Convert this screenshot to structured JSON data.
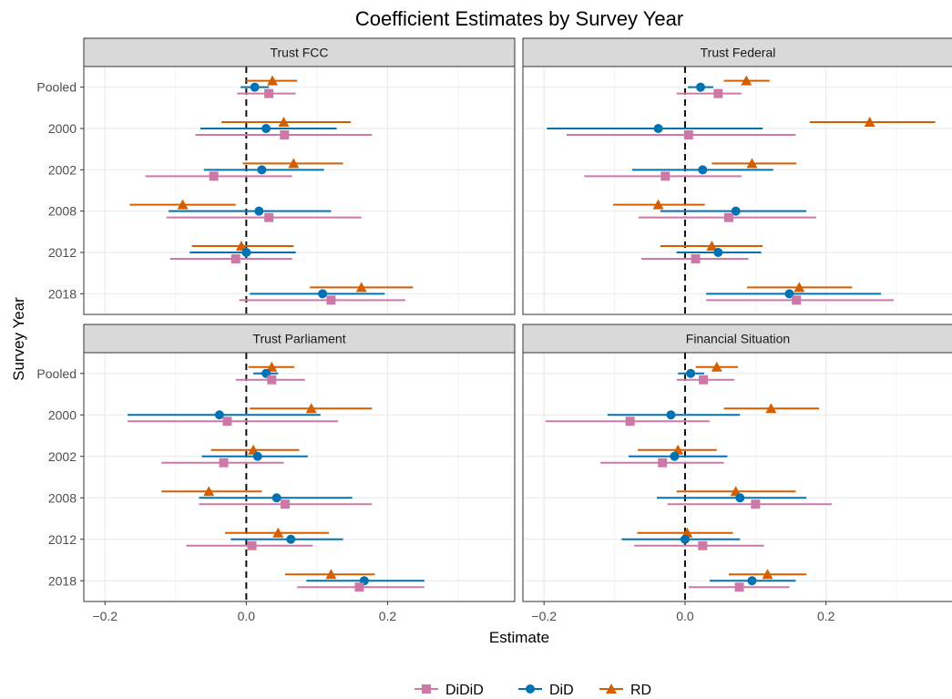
{
  "colors": {
    "DiDiD": "#cc79a7",
    "DiD": "#0072b2",
    "RD": "#d55e00",
    "strip": "#d9d9d9",
    "grid": "#ebebeb",
    "border": "#333333"
  },
  "chart_data": {
    "type": "forest-plot",
    "title": "Coefficient Estimates by Survey Year",
    "xlabel": "Estimate",
    "ylabel": "Survey Year",
    "xlim": [
      -0.23,
      0.38
    ],
    "x_ticks": [
      -0.2,
      0.0,
      0.2
    ],
    "x_tick_labels": [
      "−0.2",
      "0.0",
      "0.2"
    ],
    "reference_line": 0,
    "categories": [
      "Pooled",
      "2000",
      "2002",
      "2008",
      "2012",
      "2018"
    ],
    "legend": {
      "placement": "bottom",
      "entries": [
        {
          "name": "DiDiD",
          "marker": "square"
        },
        {
          "name": "DiD",
          "marker": "circle"
        },
        {
          "name": "RD",
          "marker": "triangle"
        }
      ]
    },
    "panels": [
      {
        "title": "Trust FCC",
        "series": [
          {
            "name": "RD",
            "points": [
              {
                "year": "Pooled",
                "est": 0.037,
                "lo": 0.0,
                "hi": 0.072
              },
              {
                "year": "2000",
                "est": 0.053,
                "lo": -0.035,
                "hi": 0.148
              },
              {
                "year": "2002",
                "est": 0.067,
                "lo": -0.005,
                "hi": 0.137
              },
              {
                "year": "2008",
                "est": -0.09,
                "lo": -0.165,
                "hi": -0.015
              },
              {
                "year": "2012",
                "est": -0.007,
                "lo": -0.077,
                "hi": 0.067
              },
              {
                "year": "2018",
                "est": 0.163,
                "lo": 0.09,
                "hi": 0.236
              }
            ]
          },
          {
            "name": "DiD",
            "points": [
              {
                "year": "Pooled",
                "est": 0.012,
                "lo": -0.008,
                "hi": 0.032
              },
              {
                "year": "2000",
                "est": 0.028,
                "lo": -0.065,
                "hi": 0.128
              },
              {
                "year": "2002",
                "est": 0.022,
                "lo": -0.06,
                "hi": 0.11
              },
              {
                "year": "2008",
                "est": 0.018,
                "lo": -0.11,
                "hi": 0.12
              },
              {
                "year": "2012",
                "est": 0.0,
                "lo": -0.08,
                "hi": 0.07
              },
              {
                "year": "2018",
                "est": 0.108,
                "lo": 0.005,
                "hi": 0.196
              }
            ]
          },
          {
            "name": "DiDiD",
            "points": [
              {
                "year": "Pooled",
                "est": 0.032,
                "lo": -0.013,
                "hi": 0.07
              },
              {
                "year": "2000",
                "est": 0.054,
                "lo": -0.072,
                "hi": 0.178
              },
              {
                "year": "2002",
                "est": -0.046,
                "lo": -0.143,
                "hi": 0.065
              },
              {
                "year": "2008",
                "est": 0.032,
                "lo": -0.113,
                "hi": 0.163
              },
              {
                "year": "2012",
                "est": -0.015,
                "lo": -0.108,
                "hi": 0.065
              },
              {
                "year": "2018",
                "est": 0.12,
                "lo": -0.01,
                "hi": 0.225
              }
            ]
          }
        ]
      },
      {
        "title": "Trust Federal",
        "series": [
          {
            "name": "RD",
            "points": [
              {
                "year": "Pooled",
                "est": 0.087,
                "lo": 0.055,
                "hi": 0.12
              },
              {
                "year": "2000",
                "est": 0.262,
                "lo": 0.177,
                "hi": 0.355
              },
              {
                "year": "2002",
                "est": 0.095,
                "lo": 0.038,
                "hi": 0.158
              },
              {
                "year": "2008",
                "est": -0.038,
                "lo": -0.102,
                "hi": 0.028
              },
              {
                "year": "2012",
                "est": 0.038,
                "lo": -0.035,
                "hi": 0.11
              },
              {
                "year": "2018",
                "est": 0.162,
                "lo": 0.088,
                "hi": 0.237
              }
            ]
          },
          {
            "name": "DiD",
            "points": [
              {
                "year": "Pooled",
                "est": 0.022,
                "lo": 0.004,
                "hi": 0.04
              },
              {
                "year": "2000",
                "est": -0.038,
                "lo": -0.196,
                "hi": 0.11
              },
              {
                "year": "2002",
                "est": 0.025,
                "lo": -0.075,
                "hi": 0.125
              },
              {
                "year": "2008",
                "est": 0.072,
                "lo": -0.035,
                "hi": 0.172
              },
              {
                "year": "2012",
                "est": 0.047,
                "lo": -0.012,
                "hi": 0.108
              },
              {
                "year": "2018",
                "est": 0.148,
                "lo": 0.03,
                "hi": 0.278
              }
            ]
          },
          {
            "name": "DiDiD",
            "points": [
              {
                "year": "Pooled",
                "est": 0.047,
                "lo": -0.012,
                "hi": 0.08
              },
              {
                "year": "2000",
                "est": 0.005,
                "lo": -0.168,
                "hi": 0.157
              },
              {
                "year": "2002",
                "est": -0.028,
                "lo": -0.143,
                "hi": 0.08
              },
              {
                "year": "2008",
                "est": 0.062,
                "lo": -0.066,
                "hi": 0.186
              },
              {
                "year": "2012",
                "est": 0.015,
                "lo": -0.062,
                "hi": 0.09
              },
              {
                "year": "2018",
                "est": 0.158,
                "lo": 0.03,
                "hi": 0.296
              }
            ]
          }
        ]
      },
      {
        "title": "Trust Parliament",
        "series": [
          {
            "name": "RD",
            "points": [
              {
                "year": "Pooled",
                "est": 0.036,
                "lo": 0.003,
                "hi": 0.068
              },
              {
                "year": "2000",
                "est": 0.092,
                "lo": 0.005,
                "hi": 0.178
              },
              {
                "year": "2002",
                "est": 0.01,
                "lo": -0.05,
                "hi": 0.075
              },
              {
                "year": "2008",
                "est": -0.053,
                "lo": -0.12,
                "hi": 0.022
              },
              {
                "year": "2012",
                "est": 0.045,
                "lo": -0.03,
                "hi": 0.117
              },
              {
                "year": "2018",
                "est": 0.12,
                "lo": 0.055,
                "hi": 0.182
              }
            ]
          },
          {
            "name": "DiD",
            "points": [
              {
                "year": "Pooled",
                "est": 0.028,
                "lo": 0.01,
                "hi": 0.045
              },
              {
                "year": "2000",
                "est": -0.038,
                "lo": -0.168,
                "hi": 0.105
              },
              {
                "year": "2002",
                "est": 0.016,
                "lo": -0.063,
                "hi": 0.087
              },
              {
                "year": "2008",
                "est": 0.043,
                "lo": -0.067,
                "hi": 0.15
              },
              {
                "year": "2012",
                "est": 0.063,
                "lo": -0.022,
                "hi": 0.137
              },
              {
                "year": "2018",
                "est": 0.167,
                "lo": 0.085,
                "hi": 0.252
              }
            ]
          },
          {
            "name": "DiDiD",
            "points": [
              {
                "year": "Pooled",
                "est": 0.036,
                "lo": -0.015,
                "hi": 0.083
              },
              {
                "year": "2000",
                "est": -0.027,
                "lo": -0.168,
                "hi": 0.13
              },
              {
                "year": "2002",
                "est": -0.032,
                "lo": -0.12,
                "hi": 0.053
              },
              {
                "year": "2008",
                "est": 0.055,
                "lo": -0.067,
                "hi": 0.178
              },
              {
                "year": "2012",
                "est": 0.008,
                "lo": -0.085,
                "hi": 0.094
              },
              {
                "year": "2018",
                "est": 0.16,
                "lo": 0.072,
                "hi": 0.252
              }
            ]
          }
        ]
      },
      {
        "title": "Financial Situation",
        "series": [
          {
            "name": "RD",
            "points": [
              {
                "year": "Pooled",
                "est": 0.045,
                "lo": 0.015,
                "hi": 0.075
              },
              {
                "year": "2000",
                "est": 0.122,
                "lo": 0.055,
                "hi": 0.19
              },
              {
                "year": "2002",
                "est": -0.01,
                "lo": -0.067,
                "hi": 0.045
              },
              {
                "year": "2008",
                "est": 0.072,
                "lo": -0.012,
                "hi": 0.157
              },
              {
                "year": "2012",
                "est": 0.003,
                "lo": -0.068,
                "hi": 0.068
              },
              {
                "year": "2018",
                "est": 0.117,
                "lo": 0.062,
                "hi": 0.172
              }
            ]
          },
          {
            "name": "DiD",
            "points": [
              {
                "year": "Pooled",
                "est": 0.008,
                "lo": -0.01,
                "hi": 0.027
              },
              {
                "year": "2000",
                "est": -0.02,
                "lo": -0.11,
                "hi": 0.078
              },
              {
                "year": "2002",
                "est": -0.015,
                "lo": -0.08,
                "hi": 0.06
              },
              {
                "year": "2008",
                "est": 0.078,
                "lo": -0.04,
                "hi": 0.172
              },
              {
                "year": "2012",
                "est": 0.0,
                "lo": -0.09,
                "hi": 0.078
              },
              {
                "year": "2018",
                "est": 0.095,
                "lo": 0.035,
                "hi": 0.157
              }
            ]
          },
          {
            "name": "DiDiD",
            "points": [
              {
                "year": "Pooled",
                "est": 0.026,
                "lo": -0.012,
                "hi": 0.07
              },
              {
                "year": "2000",
                "est": -0.078,
                "lo": -0.198,
                "hi": 0.035
              },
              {
                "year": "2002",
                "est": -0.032,
                "lo": -0.12,
                "hi": 0.055
              },
              {
                "year": "2008",
                "est": 0.1,
                "lo": -0.025,
                "hi": 0.208
              },
              {
                "year": "2012",
                "est": 0.025,
                "lo": -0.072,
                "hi": 0.112
              },
              {
                "year": "2018",
                "est": 0.077,
                "lo": 0.005,
                "hi": 0.148
              }
            ]
          }
        ]
      }
    ]
  }
}
